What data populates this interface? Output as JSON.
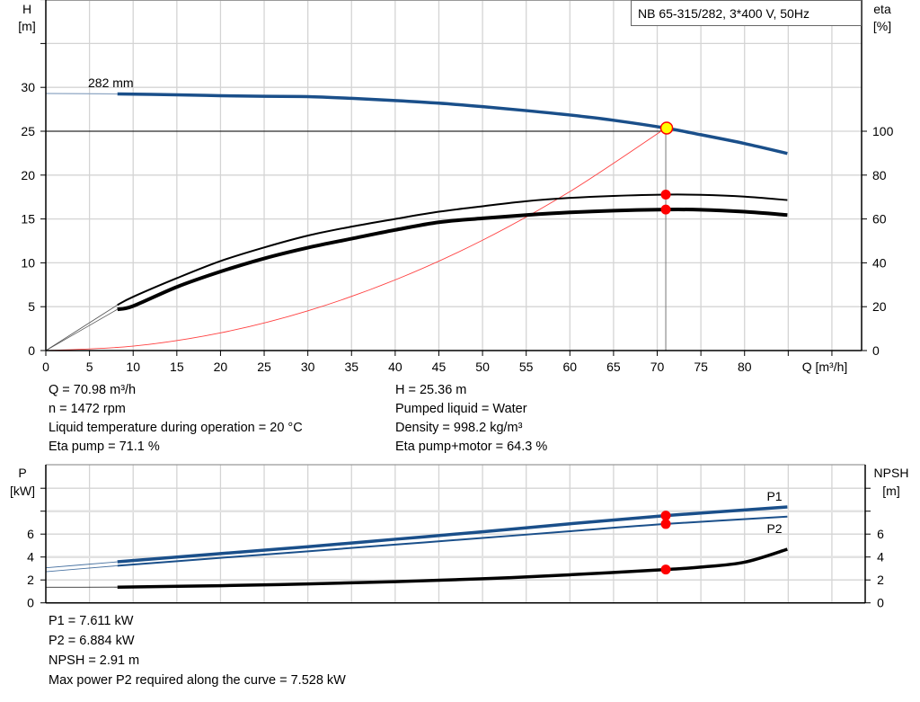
{
  "title_box": "NB 65-315/282, 3*400 V, 50Hz",
  "colors": {
    "head_curve": "#1a4f8a",
    "power_curve": "#1a4f8a",
    "efficiency_curve": "#000000",
    "npsh_curve": "#000000",
    "system_curve": "#ff4040",
    "duty_point_fill": "#ffff00",
    "marker": "#ff0000",
    "grid": "#d4d4d4"
  },
  "operating_info": {
    "left": [
      "Q = 70.98 m³/h",
      "n = 1472 rpm",
      "Liquid temperature during operation = 20 °C",
      "Eta pump = 71.1 %"
    ],
    "right": [
      "H = 25.36 m",
      "Pumped liquid = Water",
      "Density = 998.2 kg/m³",
      "Eta pump+motor = 64.3 %"
    ]
  },
  "power_info": [
    "P1 = 7.611 kW",
    "P2 = 6.884 kW",
    "NPSH = 2.91 m",
    "Max power P2 required along the curve = 7.528 kW"
  ],
  "chart_data": [
    {
      "type": "line",
      "xlabel": "Q [m³/h]",
      "ylabel_left": [
        "H",
        "[m]"
      ],
      "ylabel_right": [
        "eta",
        "[%]"
      ],
      "xlim": [
        0,
        93.4
      ],
      "ylim_left": [
        0,
        40
      ],
      "ylim_right": [
        0,
        160
      ],
      "x_ticks": [
        "0",
        "5",
        "10",
        "15",
        "20",
        "25",
        "30",
        "35",
        "40",
        "45",
        "50",
        "55",
        "60",
        "65",
        "70",
        "75",
        "80"
      ],
      "x_ticks_unlabeled": [
        85,
        90
      ],
      "y_ticks_left": [
        "0",
        "5",
        "10",
        "15",
        "20",
        "25",
        "30"
      ],
      "y_ticks_right": [
        "0",
        "20",
        "40",
        "60",
        "80",
        "100"
      ],
      "grid": true,
      "impeller_label": "282 mm",
      "min_flow_thick_from": 8.2,
      "duty_point": {
        "Q": 70.98,
        "H": 25.36,
        "eta_pump": 71.1,
        "eta_total": 64.3
      },
      "series": [
        {
          "key": "head",
          "axis": "left",
          "x": [
            0,
            8.2,
            15,
            20,
            25,
            30,
            35,
            40,
            45,
            50,
            55,
            60,
            65,
            70.98,
            75,
            80,
            84.9
          ],
          "y": [
            29.3,
            29.25,
            29.15,
            29.05,
            28.98,
            28.95,
            28.75,
            28.5,
            28.2,
            27.8,
            27.35,
            26.85,
            26.25,
            25.36,
            24.6,
            23.6,
            22.47
          ]
        },
        {
          "key": "eta_pump",
          "axis": "right",
          "x": [
            0,
            8.2,
            10,
            15,
            20,
            25,
            30,
            35,
            40,
            45,
            50,
            55,
            60,
            65,
            70.98,
            75,
            80,
            84.9
          ],
          "y": [
            0,
            20.8,
            24.5,
            33,
            40.8,
            47,
            52.4,
            56.5,
            60,
            63.3,
            65.8,
            68.1,
            69.6,
            70.5,
            71.1,
            71.0,
            70.2,
            68.6
          ]
        },
        {
          "key": "eta_total",
          "axis": "right",
          "x": [
            0,
            8.2,
            10,
            15,
            20,
            25,
            30,
            35,
            40,
            45,
            50,
            55,
            60,
            65,
            70.98,
            75,
            80,
            84.9
          ],
          "y": [
            0,
            18.8,
            20.3,
            29,
            36,
            42,
            46.9,
            51,
            55,
            58.5,
            60.3,
            61.8,
            63,
            63.8,
            64.3,
            64.2,
            63.3,
            61.8
          ]
        },
        {
          "key": "system",
          "axis": "left",
          "x": [
            0,
            10,
            20,
            30,
            40,
            50,
            60,
            70.98
          ],
          "y": [
            0,
            0.503,
            2.013,
            4.53,
            8.054,
            12.58,
            18.12,
            25.36
          ]
        }
      ]
    },
    {
      "type": "line",
      "ylabel_left": [
        "P",
        "[kW]"
      ],
      "ylabel_right": [
        "NPSH",
        "[m]"
      ],
      "xlim": [
        0,
        93.4
      ],
      "ylim": [
        0,
        12
      ],
      "y_ticks_left": [
        "0",
        "2",
        "4",
        "6"
      ],
      "y_ticks_right": [
        "0",
        "2",
        "4",
        "6"
      ],
      "y_ticks_unlabeled": [
        8,
        10
      ],
      "grid": true,
      "duty_point": {
        "Q": 70.98,
        "P1": 7.611,
        "P2": 6.884,
        "NPSH": 2.91
      },
      "series": [
        {
          "key": "P1",
          "name": "P1",
          "x": [
            0,
            8.2,
            20,
            30,
            40,
            50,
            60,
            70.98,
            84.9
          ],
          "y": [
            3.06,
            3.58,
            4.3,
            4.9,
            5.55,
            6.2,
            6.9,
            7.611,
            8.37
          ]
        },
        {
          "key": "P2",
          "name": "P2",
          "x": [
            0,
            8.2,
            20,
            30,
            40,
            50,
            60,
            70.98,
            84.9
          ],
          "y": [
            2.72,
            3.24,
            3.93,
            4.5,
            5.08,
            5.66,
            6.25,
            6.884,
            7.528
          ]
        },
        {
          "key": "NPSH",
          "x": [
            0,
            8.2,
            20,
            30,
            40,
            50,
            60,
            70.98,
            75,
            80,
            84.9
          ],
          "y": [
            1.36,
            1.37,
            1.5,
            1.65,
            1.85,
            2.1,
            2.45,
            2.91,
            3.12,
            3.55,
            4.68
          ]
        }
      ]
    }
  ]
}
